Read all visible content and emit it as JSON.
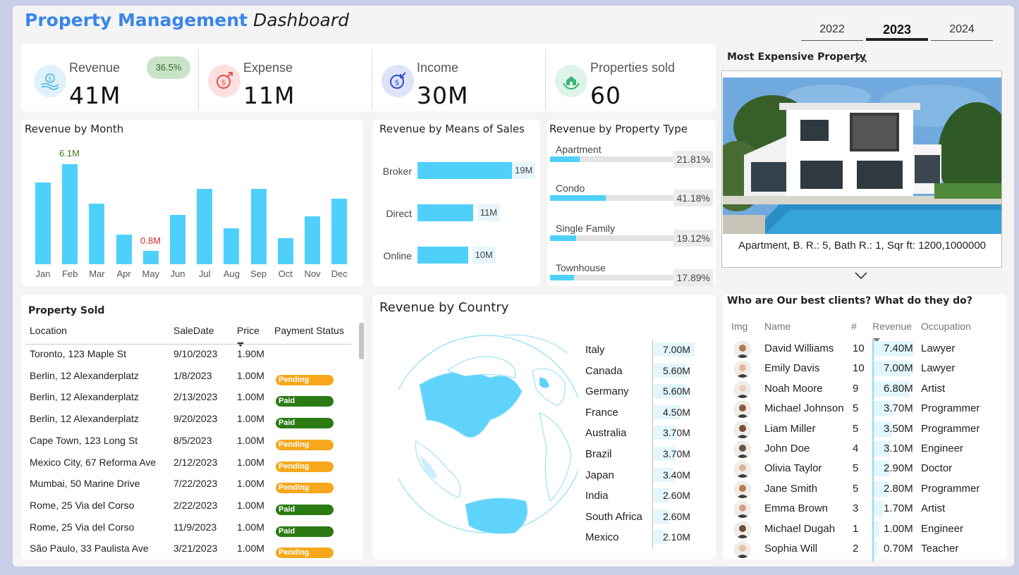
{
  "header": {
    "title_bold": "Property Management",
    "title_italic": "Dashboard"
  },
  "years": [
    {
      "label": "2022"
    },
    {
      "label": "2023"
    },
    {
      "label": "2024"
    }
  ],
  "kpis": {
    "revenue": {
      "label": "Revenue",
      "value": "41M",
      "badge": "36.5%"
    },
    "expense": {
      "label": "Expense",
      "value": "11M"
    },
    "income": {
      "label": "Income",
      "value": "30M"
    },
    "sold": {
      "label": "Properties sold",
      "value": "60"
    }
  },
  "revenue_by_month": {
    "title": "Revenue by Month",
    "max_label": "6.1M",
    "min_label": "0.8M",
    "chart_data": {
      "type": "bar",
      "categories": [
        "Jan",
        "Feb",
        "Mar",
        "Apr",
        "May",
        "Jun",
        "Jul",
        "Aug",
        "Sep",
        "Oct",
        "Nov",
        "Dec"
      ],
      "values": [
        5.0,
        6.1,
        3.7,
        1.8,
        0.8,
        3.0,
        4.6,
        2.2,
        4.6,
        1.6,
        2.9,
        4.0
      ]
    }
  },
  "means_of_sales": {
    "title": "Revenue by Means of Sales",
    "chart_data": {
      "type": "bar",
      "categories": [
        "Broker",
        "Direct",
        "Online"
      ],
      "values": [
        19,
        11,
        10
      ],
      "labels": [
        "19M",
        "11M",
        "10M"
      ]
    }
  },
  "property_type": {
    "title": "Revenue by Property Type",
    "chart_data": {
      "type": "bar",
      "categories": [
        "Apartment",
        "Condo",
        "Single Family",
        "Townhouse"
      ],
      "values": [
        21.81,
        41.18,
        19.12,
        17.89
      ],
      "labels": [
        "21.81%",
        "41.18%",
        "19.12%",
        "17.89%"
      ]
    }
  },
  "expensive": {
    "title": "Most Expensive Property",
    "caption": "Apartment, B. R.: 5, Bath R.: 1, Sqr ft: 1200,1000000"
  },
  "sold": {
    "title": "Property Sold",
    "headers": {
      "location": "Location",
      "date": "SaleDate",
      "price": "Price",
      "status": "Payment Status"
    },
    "rows": [
      {
        "location": "Toronto, 123 Maple St",
        "date": "9/10/2023",
        "price": "1.90M",
        "status": ""
      },
      {
        "location": "Berlin, 12 Alexanderplatz",
        "date": "1/8/2023",
        "price": "1.00M",
        "status": "Pending"
      },
      {
        "location": "Berlin, 12 Alexanderplatz",
        "date": "2/13/2023",
        "price": "1.00M",
        "status": "Paid"
      },
      {
        "location": "Berlin, 12 Alexanderplatz",
        "date": "9/20/2023",
        "price": "1.00M",
        "status": "Paid"
      },
      {
        "location": "Cape Town, 123 Long St",
        "date": "8/5/2023",
        "price": "1.00M",
        "status": "Pending"
      },
      {
        "location": "Mexico City, 67 Reforma Ave",
        "date": "2/12/2023",
        "price": "1.00M",
        "status": "Pending"
      },
      {
        "location": "Mumbai, 50 Marine Drive",
        "date": "7/22/2023",
        "price": "1.00M",
        "status": "Pending"
      },
      {
        "location": "Rome, 25 Via del Corso",
        "date": "2/22/2023",
        "price": "1.00M",
        "status": "Paid"
      },
      {
        "location": "Rome, 25 Via del Corso",
        "date": "11/9/2023",
        "price": "1.00M",
        "status": "Paid"
      },
      {
        "location": "São Paulo, 33 Paulista Ave",
        "date": "3/21/2023",
        "price": "1.00M",
        "status": "Pending"
      }
    ]
  },
  "country": {
    "title": "Revenue by Country",
    "chart_data": {
      "type": "bar",
      "categories": [
        "Italy",
        "Canada",
        "Germany",
        "France",
        "Australia",
        "Brazil",
        "Japan",
        "India",
        "South Africa",
        "Mexico"
      ],
      "values": [
        7.0,
        5.6,
        5.6,
        4.5,
        3.7,
        3.7,
        3.4,
        2.6,
        2.6,
        2.1
      ],
      "labels": [
        "7.00M",
        "5.60M",
        "5.60M",
        "4.50M",
        "3.70M",
        "3.70M",
        "3.40M",
        "2.60M",
        "2.60M",
        "2.10M"
      ]
    }
  },
  "clients": {
    "title": "Who are Our best clients? What do they do?",
    "headers": {
      "img": "Img",
      "name": "Name",
      "num": "#",
      "revenue": "Revenue",
      "occupation": "Occupation"
    },
    "rows": [
      {
        "name": "David Williams",
        "num": "10",
        "revenue": "7.40M",
        "rev_value": 7.4,
        "occupation": "Lawyer"
      },
      {
        "name": "Emily Davis",
        "num": "10",
        "revenue": "7.00M",
        "rev_value": 7.0,
        "occupation": "Lawyer"
      },
      {
        "name": "Noah Moore",
        "num": "9",
        "revenue": "6.80M",
        "rev_value": 6.8,
        "occupation": "Artist"
      },
      {
        "name": "Michael Johnson",
        "num": "5",
        "revenue": "3.70M",
        "rev_value": 3.7,
        "occupation": "Programmer"
      },
      {
        "name": "Liam Miller",
        "num": "5",
        "revenue": "3.50M",
        "rev_value": 3.5,
        "occupation": "Programmer"
      },
      {
        "name": "John Doe",
        "num": "4",
        "revenue": "3.10M",
        "rev_value": 3.1,
        "occupation": "Engineer"
      },
      {
        "name": "Olivia Taylor",
        "num": "5",
        "revenue": "2.90M",
        "rev_value": 2.9,
        "occupation": "Doctor"
      },
      {
        "name": "Jane Smith",
        "num": "5",
        "revenue": "2.80M",
        "rev_value": 2.8,
        "occupation": "Programmer"
      },
      {
        "name": "Emma Brown",
        "num": "3",
        "revenue": "1.70M",
        "rev_value": 1.7,
        "occupation": "Artist"
      },
      {
        "name": "Michael Dugah",
        "num": "1",
        "revenue": "1.00M",
        "rev_value": 1.0,
        "occupation": "Engineer"
      },
      {
        "name": "Sophia Will",
        "num": "2",
        "revenue": "0.70M",
        "rev_value": 0.7,
        "occupation": "Teacher"
      }
    ]
  },
  "colors": {
    "accent": "#4fd0fb",
    "title_blue": "#3a86e8",
    "paid": "#2b7a14",
    "pending": "#f7a71b"
  }
}
